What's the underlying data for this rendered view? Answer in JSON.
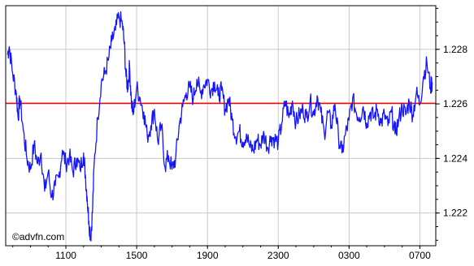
{
  "watermark": "©advfn.com",
  "colors": {
    "background": "#ffffff",
    "grid": "#c8c8c8",
    "frame": "#000000",
    "series": "#1515ff",
    "reference_line": "#ff0000",
    "text": "#000000"
  },
  "chart_data": {
    "type": "line",
    "title": "",
    "xlabel": "",
    "ylabel": "",
    "grid": true,
    "legend": "none",
    "y_axis_position": "right",
    "ylim": [
      1.2208,
      1.2296
    ],
    "x_ticks": [
      "1100",
      "1500",
      "1900",
      "2300",
      "0300",
      "0700"
    ],
    "x_tick_hours": [
      11,
      15,
      19,
      23,
      27,
      31
    ],
    "y_ticks": [
      "1.222",
      "1.224",
      "1.226",
      "1.228"
    ],
    "y_tick_values": [
      1.222,
      1.224,
      1.226,
      1.228
    ],
    "xlim_hours": [
      7.6,
      31.9
    ],
    "reference_value": 1.22602,
    "series": [
      {
        "x_hours": [
          7.7,
          7.8,
          8.0,
          8.2,
          8.3,
          8.4,
          8.6,
          8.8,
          9.0,
          9.2,
          9.4,
          9.6,
          9.8,
          10.0,
          10.2,
          10.4,
          10.6,
          10.8,
          11.0,
          11.2,
          11.4,
          11.6,
          11.8,
          12.0,
          12.1,
          12.2,
          12.3,
          12.4,
          12.5,
          12.6,
          12.8,
          13.0,
          13.2,
          13.4,
          13.6,
          13.8,
          14.0,
          14.2,
          14.3,
          14.4,
          14.5,
          14.6,
          14.7,
          14.8,
          15.0,
          15.2,
          15.4,
          15.6,
          15.8,
          16.0,
          16.2,
          16.4,
          16.6,
          16.8,
          17.0,
          17.2,
          17.4,
          17.6,
          17.8,
          18.0,
          18.2,
          18.4,
          18.6,
          18.8,
          19.0,
          19.2,
          19.4,
          19.6,
          19.8,
          20.0,
          20.2,
          20.4,
          20.6,
          20.8,
          21.0,
          21.2,
          21.4,
          21.6,
          21.8,
          22.0,
          22.2,
          22.4,
          22.6,
          22.8,
          23.0,
          23.2,
          23.4,
          23.6,
          23.8,
          24.0,
          24.2,
          24.4,
          24.6,
          24.8,
          25.0,
          25.2,
          25.4,
          25.6,
          25.8,
          26.0,
          26.2,
          26.4,
          26.6,
          26.8,
          27.0,
          27.2,
          27.4,
          27.6,
          27.8,
          28.0,
          28.2,
          28.4,
          28.6,
          28.8,
          29.0,
          29.2,
          29.4,
          29.6,
          29.8,
          30.0,
          30.2,
          30.4,
          30.6,
          30.8,
          31.0,
          31.2,
          31.4,
          31.6,
          31.7
        ],
        "y": [
          1.2278,
          1.2281,
          1.2271,
          1.2264,
          1.2255,
          1.2262,
          1.225,
          1.224,
          1.2236,
          1.2245,
          1.2238,
          1.2242,
          1.2228,
          1.2235,
          1.2226,
          1.223,
          1.2233,
          1.2243,
          1.2238,
          1.2241,
          1.2235,
          1.224,
          1.2236,
          1.2242,
          1.2234,
          1.2226,
          1.2217,
          1.2211,
          1.222,
          1.2238,
          1.2255,
          1.2268,
          1.2271,
          1.2276,
          1.2283,
          1.2287,
          1.2292,
          1.2289,
          1.2282,
          1.227,
          1.2266,
          1.2274,
          1.2261,
          1.2256,
          1.2266,
          1.2262,
          1.2257,
          1.2248,
          1.2252,
          1.2258,
          1.2246,
          1.2252,
          1.2237,
          1.2241,
          1.2236,
          1.224,
          1.2252,
          1.2259,
          1.2264,
          1.2266,
          1.2262,
          1.2269,
          1.2264,
          1.2267,
          1.2269,
          1.2265,
          1.2268,
          1.2263,
          1.2265,
          1.2258,
          1.2262,
          1.2254,
          1.2248,
          1.225,
          1.2246,
          1.2249,
          1.2244,
          1.2243,
          1.2247,
          1.2245,
          1.2249,
          1.2244,
          1.2248,
          1.2247,
          1.2246,
          1.2253,
          1.2261,
          1.2255,
          1.2261,
          1.2253,
          1.2256,
          1.2258,
          1.2255,
          1.2261,
          1.2256,
          1.2263,
          1.2257,
          1.2249,
          1.2257,
          1.2252,
          1.226,
          1.2248,
          1.2242,
          1.2249,
          1.2254,
          1.2262,
          1.2257,
          1.2255,
          1.2259,
          1.2253,
          1.2257,
          1.2255,
          1.2258,
          1.2253,
          1.2256,
          1.2252,
          1.2257,
          1.2249,
          1.2254,
          1.2259,
          1.2256,
          1.2261,
          1.2256,
          1.2264,
          1.226,
          1.227,
          1.2275,
          1.2266,
          1.2268
        ]
      }
    ]
  }
}
